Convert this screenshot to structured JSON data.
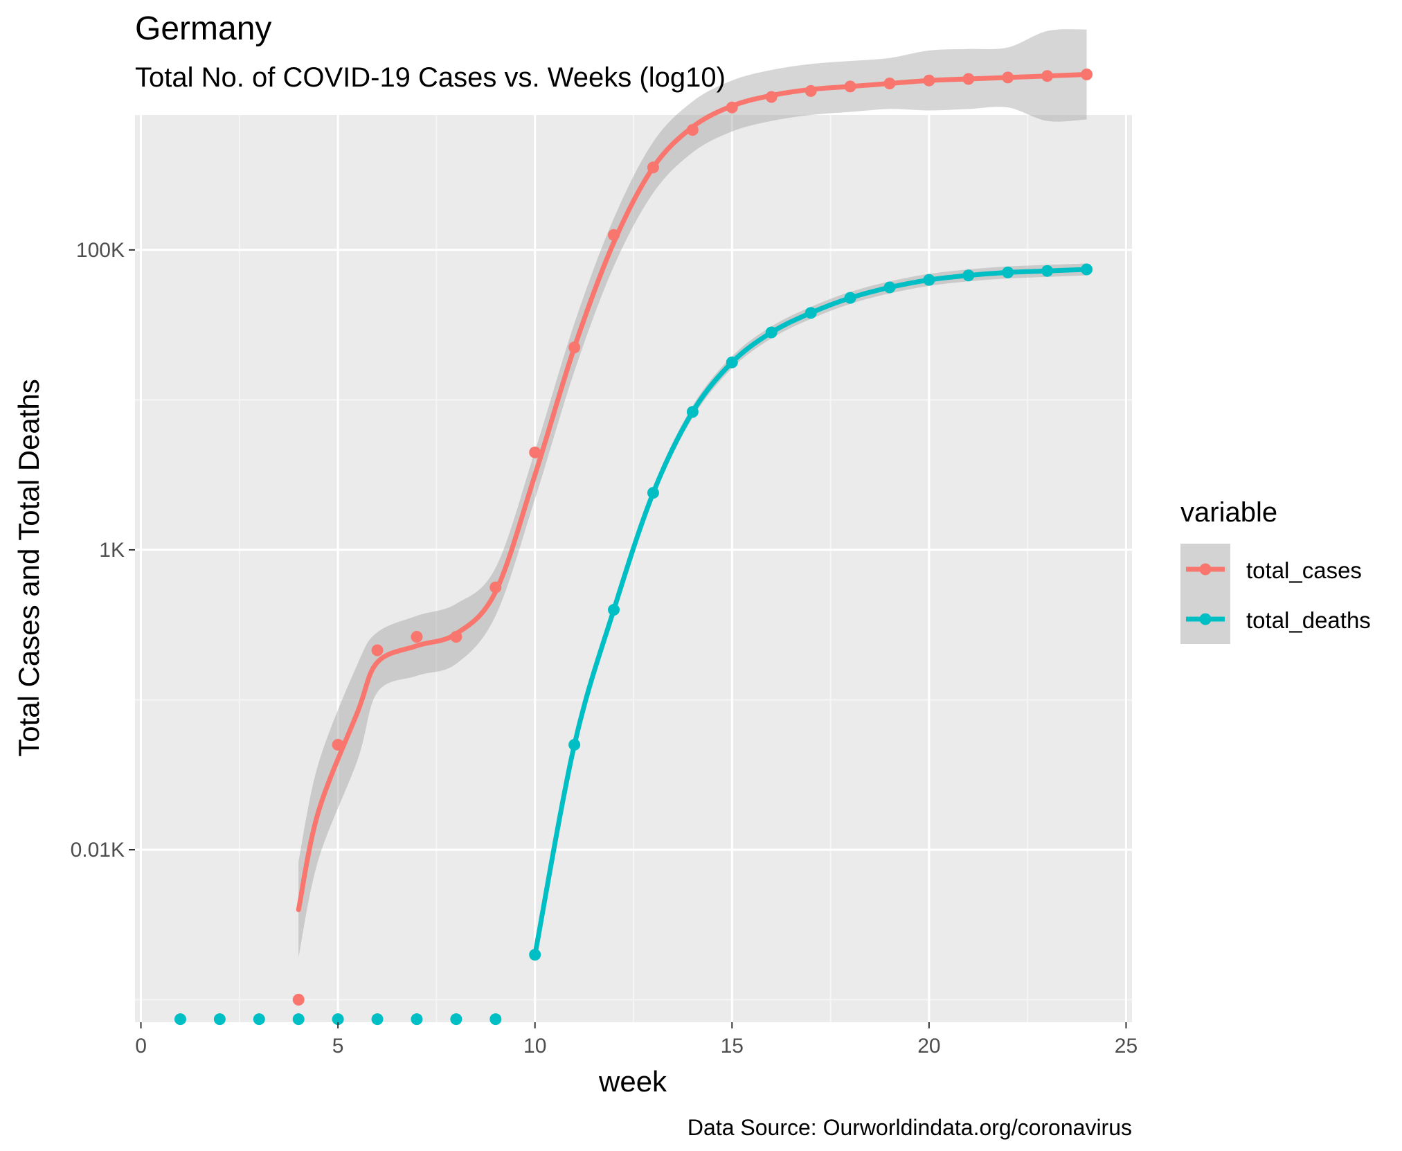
{
  "title": "Germany",
  "subtitle": "Total No. of COVID-19 Cases vs. Weeks (log10)",
  "caption": "Data Source: Ourworldindata.org/coronavirus",
  "legend": {
    "title": "variable",
    "items": [
      {
        "label": "total_cases",
        "color": "#F8766D"
      },
      {
        "label": "total_deaths",
        "color": "#00BFC4"
      }
    ]
  },
  "chart_data": {
    "type": "line",
    "title": "Germany",
    "subtitle": "Total No. of COVID-19 Cases vs. Weeks (log10)",
    "xlabel": "week",
    "ylabel": "Total Cases and Total Deaths",
    "xlim": [
      -0.15,
      25.15
    ],
    "x_ticks": [
      0,
      5,
      10,
      15,
      20,
      25
    ],
    "x_tick_labels": [
      "0",
      "5",
      "10",
      "15",
      "20",
      "25"
    ],
    "y_scale": "log10",
    "ylim_log10": [
      -0.15,
      5.9
    ],
    "y_ticks_log10": [
      1,
      3,
      5
    ],
    "y_tick_labels": [
      "0.01K",
      "1K",
      "100K"
    ],
    "grid": true,
    "smoothing": "loess with confidence band",
    "series": [
      {
        "name": "total_cases",
        "color": "#F8766D",
        "x": [
          4,
          5,
          6,
          7,
          8,
          9,
          10,
          11,
          12,
          13,
          14,
          15,
          16,
          17,
          18,
          19,
          20,
          21,
          22,
          23,
          24
        ],
        "y_log10": [
          0.0,
          1.7,
          2.33,
          2.42,
          2.42,
          2.75,
          3.65,
          4.35,
          5.1,
          5.55,
          5.8,
          5.95,
          6.02,
          6.06,
          6.09,
          6.11,
          6.13,
          6.14,
          6.15,
          6.16,
          6.17
        ],
        "y": [
          1,
          50,
          214,
          263,
          263,
          562,
          4467,
          22387,
          125893,
          354813,
          630957,
          891251,
          1047129,
          1148154,
          1230269,
          1288250,
          1348963,
          1380384,
          1412538,
          1445440,
          1479108
        ],
        "smooth_log10": [
          0.6,
          1.25,
          1.92,
          2.25,
          2.36,
          2.44,
          2.72,
          3.5,
          4.35,
          5.05,
          5.55,
          5.82,
          5.96,
          6.03,
          6.07,
          6.09,
          6.11,
          6.13,
          6.14,
          6.15,
          6.16,
          6.17
        ],
        "smooth_x": [
          4,
          4.5,
          5.5,
          6,
          7,
          8,
          9,
          10,
          11,
          12,
          13,
          14,
          15,
          16,
          17,
          18,
          19,
          20,
          21,
          22,
          23,
          24
        ]
      },
      {
        "name": "total_deaths",
        "color": "#00BFC4",
        "x": [
          1,
          2,
          3,
          4,
          5,
          6,
          7,
          8,
          9,
          10,
          11,
          12,
          13,
          14,
          15,
          16,
          17,
          18,
          19,
          20,
          21,
          22,
          23,
          24
        ],
        "y_log10": [
          -0.33,
          -0.33,
          -0.33,
          -0.33,
          -0.33,
          -0.33,
          -0.33,
          -0.33,
          -0.33,
          0.3,
          1.7,
          2.6,
          3.38,
          3.92,
          4.25,
          4.45,
          4.58,
          4.68,
          4.75,
          4.8,
          4.83,
          4.85,
          4.86,
          4.87
        ],
        "y": [
          0,
          0,
          0,
          0,
          0,
          0,
          0,
          0,
          0,
          2,
          50,
          398,
          2399,
          8318,
          17783,
          28184,
          38019,
          47863,
          56234,
          63096,
          67608,
          70795,
          72444,
          74131
        ],
        "smooth_log10": [
          0.3,
          1.7,
          2.6,
          3.38,
          3.92,
          4.25,
          4.45,
          4.58,
          4.68,
          4.75,
          4.8,
          4.83,
          4.85,
          4.86,
          4.87
        ],
        "smooth_x": [
          10,
          11,
          12,
          13,
          14,
          15,
          16,
          17,
          18,
          19,
          20,
          21,
          22,
          23,
          24
        ]
      }
    ]
  }
}
